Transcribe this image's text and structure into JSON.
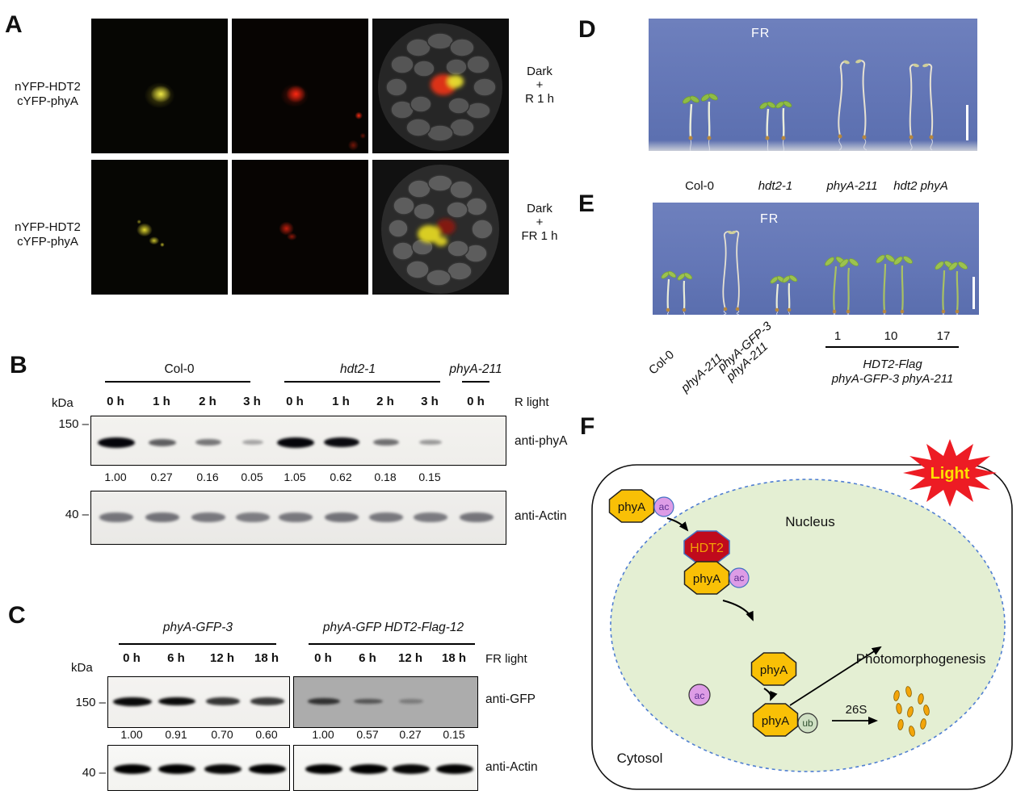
{
  "A": {
    "label": "A",
    "rows": [
      {
        "construct1": "nYFP-HDT2",
        "construct2": "cYFP-phyA",
        "cond1": "Dark",
        "cond2": "+",
        "cond3": "R 1 h"
      },
      {
        "construct1": "nYFP-HDT2",
        "construct2": "cYFP-phyA",
        "cond1": "Dark",
        "cond2": "+",
        "cond3": "FR 1 h"
      }
    ]
  },
  "B": {
    "label": "B",
    "kda": "kDa",
    "light": "R light",
    "groups": [
      {
        "name": "Col-0"
      },
      {
        "name": "hdt2-1"
      },
      {
        "name": "phyA-211"
      }
    ],
    "timepoints": [
      "0 h",
      "1 h",
      "2 h",
      "3 h",
      "0 h",
      "1 h",
      "2 h",
      "3 h",
      "0 h"
    ],
    "marker_top": "150 –",
    "marker_bottom": "40 –",
    "antibody_top": "anti-phyA",
    "antibody_bottom": "anti-Actin",
    "values": [
      "1.00",
      "0.27",
      "0.16",
      "0.05",
      "1.05",
      "0.62",
      "0.18",
      "0.15"
    ],
    "band_intensities_top": [
      1,
      0.5,
      0.38,
      0.16,
      1,
      0.9,
      0.42,
      0.22,
      0
    ],
    "band_intensities_bottom": [
      0.6,
      0.62,
      0.58,
      0.55,
      0.58,
      0.62,
      0.58,
      0.56,
      0.6
    ]
  },
  "C": {
    "label": "C",
    "kda": "kDa",
    "light": "FR light",
    "groups": [
      {
        "name": "phyA-GFP-3"
      },
      {
        "name": "phyA-GFP HDT2-Flag-12"
      }
    ],
    "timepoints": [
      "0 h",
      "6 h",
      "12 h",
      "18 h",
      "0 h",
      "6 h",
      "12 h",
      "18 h"
    ],
    "marker_top": "150 –",
    "marker_bottom": "40 –",
    "antibody_top": "anti-GFP",
    "antibody_bottom": "anti-Actin",
    "values": [
      "1.00",
      "0.91",
      "0.70",
      "0.60",
      "1.00",
      "0.57",
      "0.27",
      "0.15"
    ],
    "band_intensities_top_left": [
      1,
      0.93,
      0.72,
      0.7
    ],
    "band_intensities_top_right": [
      0.72,
      0.45,
      0.16,
      0
    ],
    "band_intensities_bottom_left": [
      0.97,
      0.95,
      0.9,
      0.97
    ],
    "band_intensities_bottom_right": [
      0.95,
      1,
      0.9,
      0.92
    ]
  },
  "D": {
    "label": "D",
    "light": "FR",
    "genotypes": [
      "Col-0",
      "hdt2-1",
      "phyA-211",
      "hdt2 phyA"
    ]
  },
  "E": {
    "label": "E",
    "light": "FR",
    "rotated1": "Col-0",
    "rotated2": "phyA-211",
    "rotated3a": "phyA-GFP-3",
    "rotated3b": "phyA-211",
    "line_numbers": [
      "1",
      "10",
      "17"
    ],
    "group_line1": "HDT2-Flag",
    "group_line2": "phyA-GFP-3 phyA-211"
  },
  "F": {
    "label": "F",
    "light": "Light",
    "nucleus": "Nucleus",
    "cytosol": "Cytosol",
    "phya": "phyA",
    "hdt2": "HDT2",
    "ac": "ac",
    "ub": "ub",
    "proteasome": "26S",
    "outcome": "Photomorphogenesis"
  },
  "colors": {
    "phya_fill": "#f9c006",
    "hdt2_fill": "#c00a1c",
    "hdt2_text": "#f2a007",
    "ac_fill": "#dd9ce6",
    "ub_fill": "#cfe0c3",
    "nucleus_fill": "#e4efd3",
    "nucleus_border": "#4f7ed2",
    "light_star": "#ed1c24",
    "light_text": "#ffdf00",
    "photo_blue": "#6679b8",
    "yfp_signal": "#e8e13a",
    "rfp_signal": "#e63317"
  }
}
